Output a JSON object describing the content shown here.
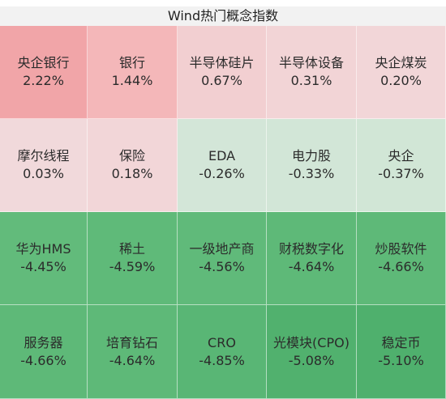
{
  "title": "Wind热门概念指数",
  "tiles": [
    {
      "name": "央企银行",
      "change": "2.22%",
      "color": "#f1a5a8"
    },
    {
      "name": "银行",
      "change": "1.44%",
      "color": "#f4b7b9"
    },
    {
      "name": "半导体硅片",
      "change": "0.67%",
      "color": "#f2cfd1"
    },
    {
      "name": "半导体设备",
      "change": "0.31%",
      "color": "#f2d4d6"
    },
    {
      "name": "央企煤炭",
      "change": "0.20%",
      "color": "#f2d6d8"
    },
    {
      "name": "摩尔线程",
      "change": "0.03%",
      "color": "#f1d9db"
    },
    {
      "name": "保险",
      "change": "0.18%",
      "color": "#f2d6d8"
    },
    {
      "name": "EDA",
      "change": "-0.26%",
      "color": "#d3e6d8"
    },
    {
      "name": "电力股",
      "change": "-0.33%",
      "color": "#d2e6d7"
    },
    {
      "name": "央企",
      "change": "-0.37%",
      "color": "#d1e6d6"
    },
    {
      "name": "华为HMS",
      "change": "-4.45%",
      "color": "#62bb7b"
    },
    {
      "name": "稀土",
      "change": "-4.59%",
      "color": "#5fba79"
    },
    {
      "name": "一级地产商",
      "change": "-4.56%",
      "color": "#60ba7a"
    },
    {
      "name": "财税数字化",
      "change": "-4.64%",
      "color": "#5eb978"
    },
    {
      "name": "炒股软件",
      "change": "-4.66%",
      "color": "#5eb978"
    },
    {
      "name": "服务器",
      "change": "-4.66%",
      "color": "#5eb978"
    },
    {
      "name": "培育钻石",
      "change": "-4.64%",
      "color": "#5eb978"
    },
    {
      "name": "CRO",
      "change": "-4.85%",
      "color": "#59b675"
    },
    {
      "name": "光模块(CPO)",
      "change": "-5.08%",
      "color": "#51b16e"
    },
    {
      "name": "稳定币",
      "change": "-5.10%",
      "color": "#4fb06d"
    }
  ]
}
